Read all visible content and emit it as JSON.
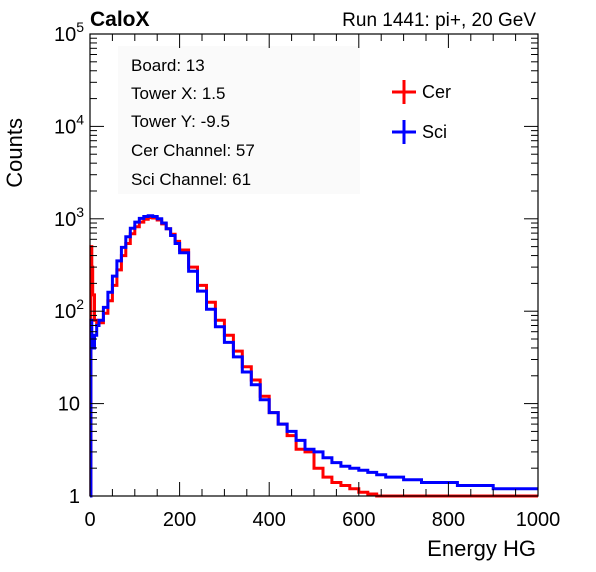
{
  "header": {
    "left": "CaloX",
    "right": "Run 1441: pi+, 20 GeV"
  },
  "info_box": {
    "lines": [
      "Board: 13",
      "Tower X: 1.5",
      "Tower Y: -9.5",
      "Cer Channel: 57",
      "Sci Channel: 61"
    ]
  },
  "chart_data": {
    "type": "line",
    "title": "",
    "xlabel": "Energy HG",
    "ylabel": "Counts",
    "xlim": [
      0,
      1000
    ],
    "ylim": [
      1,
      100000
    ],
    "yscale": "log",
    "grid": false,
    "legend_position": "top-right",
    "x_ticks": [
      0,
      200,
      400,
      600,
      800,
      1000
    ],
    "x_tick_labels": [
      "0",
      "200",
      "400",
      "600",
      "800",
      "1000"
    ],
    "y_ticks": [
      1,
      10,
      100,
      1000,
      10000,
      100000
    ],
    "y_tick_labels": [
      {
        "base": "1",
        "exp": ""
      },
      {
        "base": "10",
        "exp": ""
      },
      {
        "base": "10",
        "exp": "2"
      },
      {
        "base": "10",
        "exp": "3"
      },
      {
        "base": "10",
        "exp": "4"
      },
      {
        "base": "10",
        "exp": "5"
      }
    ],
    "series": [
      {
        "name": "Cer",
        "color": "#ff0000",
        "x": [
          0,
          2,
          4,
          6,
          10,
          15,
          20,
          30,
          40,
          50,
          60,
          70,
          80,
          90,
          100,
          110,
          120,
          130,
          140,
          150,
          160,
          170,
          180,
          190,
          200,
          220,
          240,
          260,
          280,
          300,
          320,
          340,
          360,
          380,
          400,
          420,
          440,
          460,
          480,
          500,
          520,
          540,
          560,
          580,
          600,
          620,
          640,
          660,
          680
        ],
        "y": [
          1,
          500,
          300,
          150,
          80,
          70,
          75,
          95,
          130,
          190,
          280,
          400,
          540,
          690,
          820,
          920,
          990,
          1030,
          1020,
          970,
          880,
          780,
          680,
          570,
          460,
          300,
          190,
          125,
          80,
          55,
          37,
          25,
          18,
          12,
          8,
          6,
          4.5,
          3.2,
          3,
          2,
          1.6,
          1.4,
          1.3,
          1.2,
          1.1,
          1.05,
          1,
          1,
          1
        ]
      },
      {
        "name": "Sci",
        "color": "#0000ff",
        "x": [
          0,
          2,
          4,
          6,
          10,
          15,
          20,
          30,
          40,
          50,
          60,
          70,
          80,
          90,
          100,
          110,
          120,
          130,
          140,
          150,
          160,
          170,
          180,
          190,
          200,
          220,
          240,
          260,
          280,
          300,
          320,
          340,
          360,
          380,
          400,
          420,
          440,
          460,
          480,
          500,
          520,
          540,
          560,
          580,
          600,
          620,
          640,
          660,
          680,
          700,
          740,
          780,
          820,
          860,
          900,
          940,
          980,
          1000
        ],
        "y": [
          1,
          80,
          50,
          40,
          55,
          70,
          80,
          110,
          160,
          240,
          350,
          490,
          640,
          790,
          920,
          1010,
          1060,
          1080,
          1060,
          1000,
          900,
          780,
          660,
          540,
          430,
          270,
          165,
          105,
          68,
          46,
          32,
          22,
          16,
          11,
          8,
          6,
          5,
          4,
          3.2,
          3,
          2.6,
          2.3,
          2.1,
          2,
          1.9,
          1.8,
          1.7,
          1.6,
          1.6,
          1.5,
          1.4,
          1.4,
          1.3,
          1.3,
          1.2,
          1.2,
          1.2,
          1.2
        ]
      }
    ]
  }
}
